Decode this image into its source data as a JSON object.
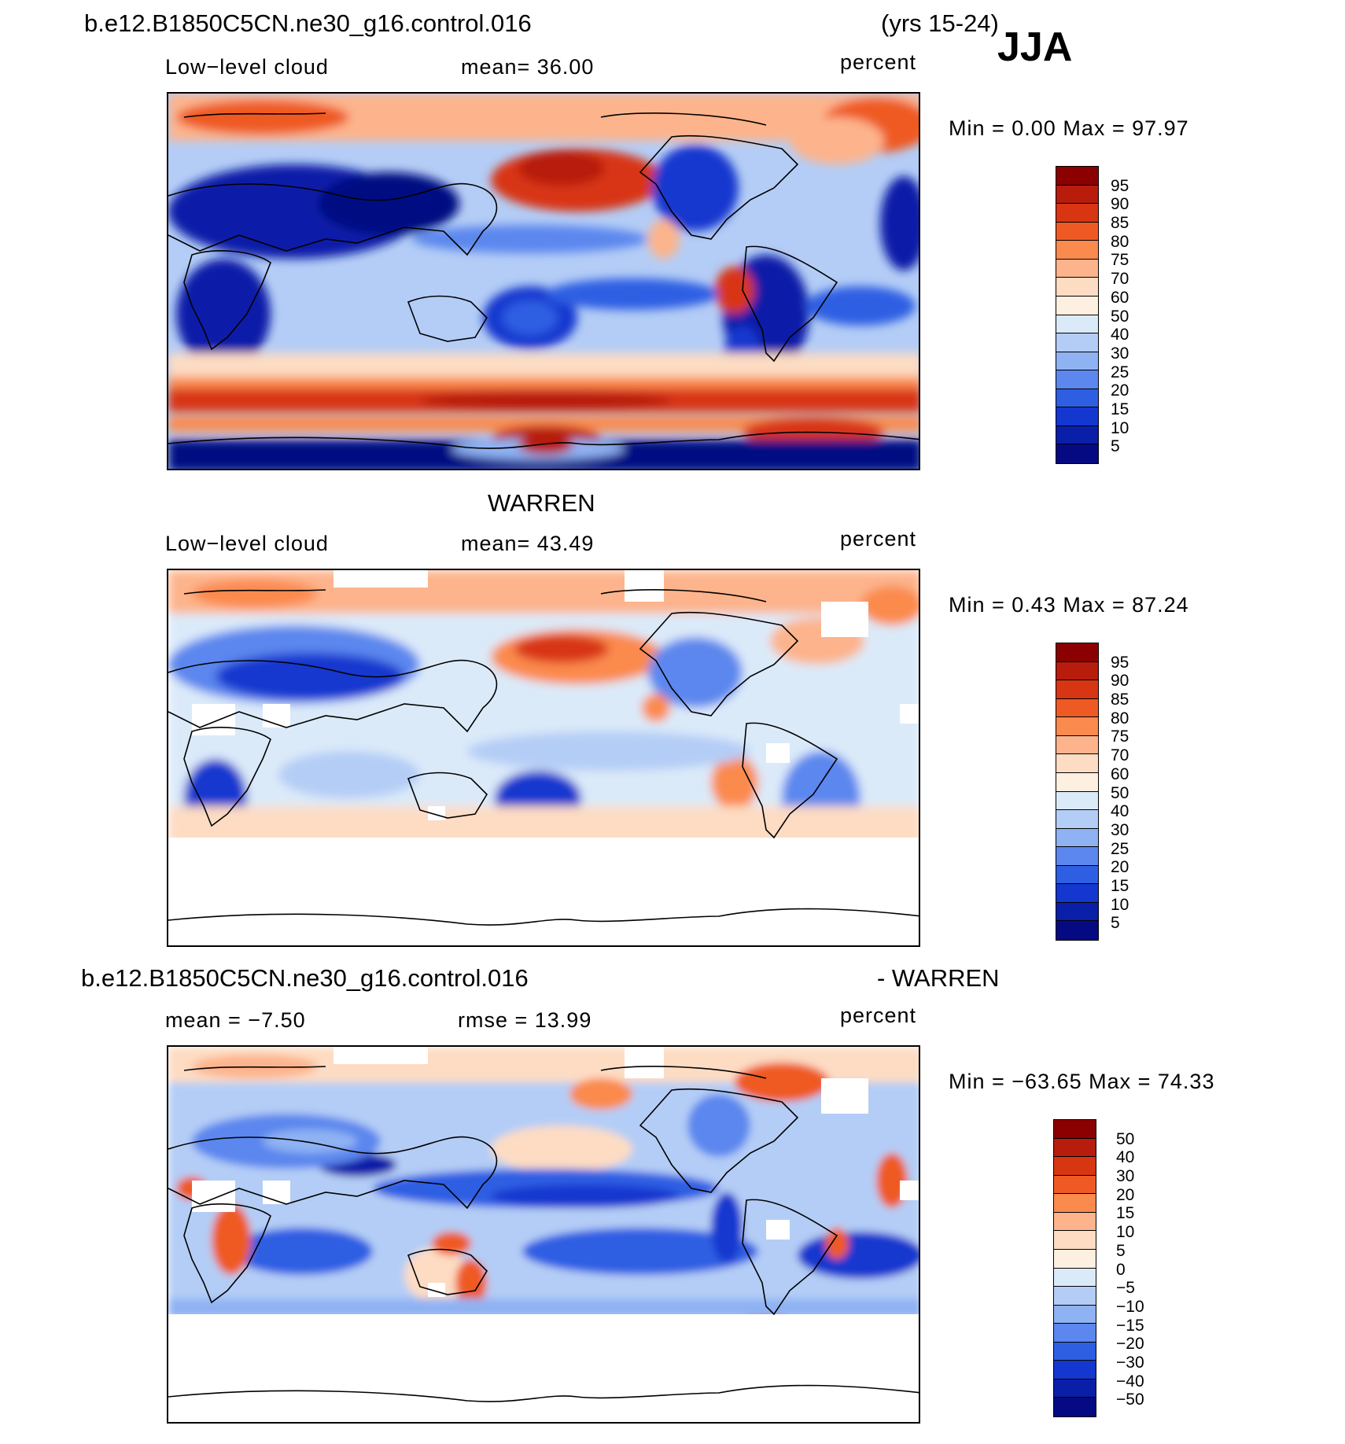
{
  "header": {
    "case_name": "b.e12.B1850C5CN.ne30_g16.control.016",
    "years": "(yrs 15-24)",
    "season": "JJA"
  },
  "panels": [
    {
      "title": "",
      "left_label": "Low−level cloud",
      "center_label": "mean=   36.00",
      "units": "percent",
      "minmax": "Min =    0.00  Max =   97.97"
    },
    {
      "title": "WARREN",
      "left_label": "Low−level cloud",
      "center_label": "mean=   43.49",
      "units": "percent",
      "minmax": "Min =    0.43  Max =   87.24"
    },
    {
      "title_left": "b.e12.B1850C5CN.ne30_g16.control.016",
      "title_right": "- WARREN",
      "left_label": "mean  =   −7.50",
      "center_label": "rmse  =   13.99",
      "units": "percent",
      "minmax": "Min = −63.65  Max =   74.33"
    }
  ],
  "colorbars": {
    "absolute": {
      "labels": [
        "95",
        "90",
        "85",
        "80",
        "75",
        "70",
        "60",
        "50",
        "40",
        "30",
        "25",
        "20",
        "15",
        "10",
        "5"
      ],
      "colors": [
        "#8b0000",
        "#b71c0c",
        "#d83512",
        "#ef5a24",
        "#fb8a4e",
        "#fdb48c",
        "#fddcc3",
        "#fef0e0",
        "#dbeaf9",
        "#b4cdf6",
        "#8fb2f3",
        "#5b87ee",
        "#2e5fe3",
        "#1437cf",
        "#0a1fa8",
        "#050a82"
      ]
    },
    "difference": {
      "labels": [
        "50",
        "40",
        "30",
        "20",
        "15",
        "10",
        "5",
        "0",
        "−5",
        "−10",
        "−15",
        "−20",
        "−30",
        "−40",
        "−50"
      ],
      "colors": [
        "#8b0000",
        "#b71c0c",
        "#d83512",
        "#ef5a24",
        "#fb8a4e",
        "#fdb48c",
        "#fddcc3",
        "#fef0e0",
        "#dbeaf9",
        "#b4cdf6",
        "#8fb2f3",
        "#5b87ee",
        "#2e5fe3",
        "#1437cf",
        "#0a1fa8",
        "#050a82"
      ]
    }
  }
}
